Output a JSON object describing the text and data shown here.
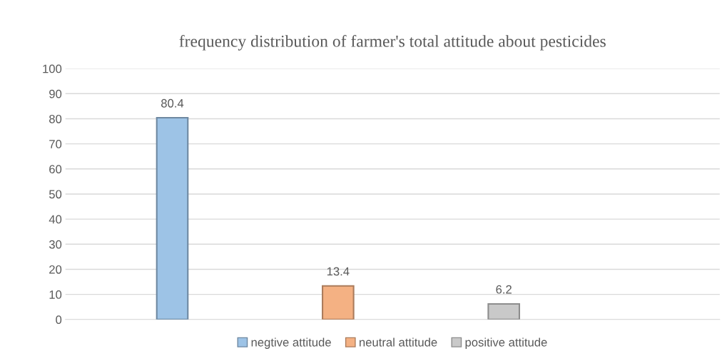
{
  "chart_data": {
    "type": "bar",
    "title": "frequency distribution of farmer's total attitude about pesticides",
    "categories": [
      null
    ],
    "series": [
      {
        "name": "negtive attitude",
        "color": "#9dc3e6",
        "values": [
          80.4
        ]
      },
      {
        "name": "neutral attitude",
        "color": "#f4b183",
        "values": [
          13.4
        ]
      },
      {
        "name": "positive attitude",
        "color": "#c9c9c9",
        "values": [
          6.2
        ]
      }
    ],
    "ylim": [
      0,
      100
    ],
    "yticks": [
      0,
      10,
      20,
      30,
      40,
      50,
      60,
      70,
      80,
      90,
      100
    ],
    "grid": "y",
    "legend": "bottom",
    "data_labels": true
  }
}
